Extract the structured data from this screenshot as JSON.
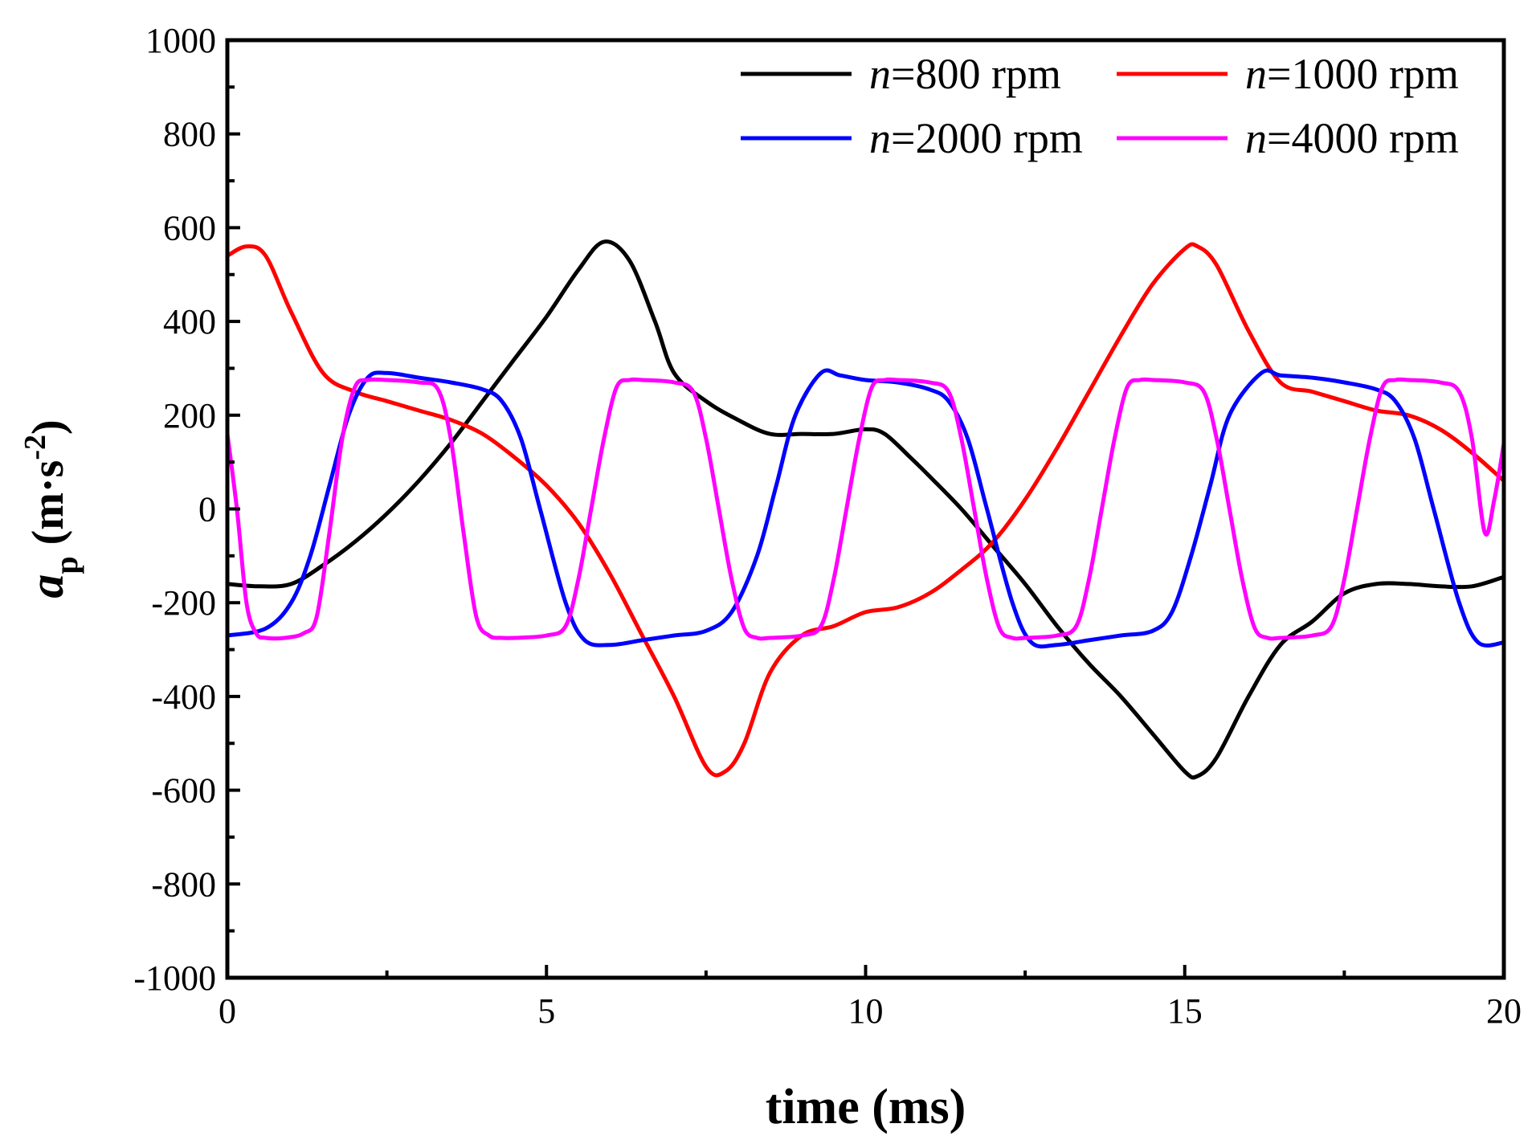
{
  "chart_data": {
    "type": "line",
    "title": "",
    "xlabel": "time (ms)",
    "ylabel": {
      "symbol": "a",
      "subscript": "p",
      "units_prefix": " (m·s",
      "units_exp": "-2",
      "units_suffix": ")"
    },
    "xlim": [
      0,
      20
    ],
    "ylim": [
      -1000,
      1000
    ],
    "x_ticks": [
      0,
      5,
      10,
      15,
      20
    ],
    "y_ticks": [
      -1000,
      -800,
      -600,
      -400,
      -200,
      0,
      200,
      400,
      600,
      800,
      1000
    ],
    "x_minor_step": 2.5,
    "y_minor_step": 100,
    "grid": false,
    "legend_position": "top-right",
    "series": [
      {
        "name": "n=800 rpm",
        "label_var": "n",
        "label_rest": "=800 rpm",
        "color": "#000000",
        "x": [
          0,
          0.5,
          1,
          1.5,
          2,
          2.5,
          3,
          3.5,
          4,
          4.5,
          5,
          5.5,
          5.9,
          6.3,
          6.7,
          7,
          7.5,
          8,
          8.5,
          9,
          9.5,
          10,
          10.3,
          10.7,
          11,
          11.5,
          12,
          12.5,
          13,
          13.5,
          14,
          14.5,
          15,
          15.2,
          15.5,
          16,
          16.5,
          17,
          17.5,
          18,
          18.5,
          19,
          19.5,
          20
        ],
        "y": [
          -160,
          -165,
          -160,
          -120,
          -70,
          -10,
          60,
          140,
          230,
          320,
          410,
          510,
          570,
          530,
          400,
          290,
          230,
          190,
          160,
          160,
          160,
          170,
          160,
          110,
          70,
          0,
          -80,
          -160,
          -250,
          -330,
          -400,
          -480,
          -560,
          -570,
          -530,
          -400,
          -290,
          -240,
          -180,
          -160,
          -160,
          -165,
          -165,
          -145
        ]
      },
      {
        "name": "n=1000 rpm",
        "label_var": "n",
        "label_rest": "=1000 rpm",
        "color": "#ff0000",
        "x": [
          0,
          0.3,
          0.6,
          1,
          1.5,
          2,
          2.5,
          3,
          3.5,
          4,
          4.5,
          5,
          5.5,
          6,
          6.5,
          7,
          7.5,
          7.8,
          8.1,
          8.5,
          9,
          9.5,
          10,
          10.5,
          11,
          11.5,
          12,
          12.5,
          13,
          13.5,
          14,
          14.5,
          15,
          15.2,
          15.5,
          16,
          16.5,
          17,
          17.5,
          18,
          18.5,
          19,
          19.5,
          20
        ],
        "y": [
          540,
          560,
          540,
          420,
          290,
          250,
          230,
          210,
          190,
          160,
          110,
          50,
          -30,
          -140,
          -270,
          -400,
          -550,
          -560,
          -500,
          -350,
          -270,
          -250,
          -220,
          -210,
          -180,
          -130,
          -70,
          20,
          130,
          250,
          370,
          480,
          555,
          560,
          520,
          380,
          270,
          250,
          230,
          210,
          200,
          170,
          120,
          60
        ]
      },
      {
        "name": "n=2000 rpm",
        "label_var": "n",
        "label_rest": "=2000 rpm",
        "color": "#0000ff",
        "x": [
          0,
          0.6,
          1,
          1.3,
          1.6,
          1.9,
          2.2,
          2.5,
          3,
          3.5,
          4,
          4.3,
          4.6,
          4.9,
          5.3,
          5.6,
          6,
          6.5,
          7,
          7.5,
          7.9,
          8.3,
          8.6,
          8.9,
          9.3,
          9.6,
          10,
          10.5,
          11,
          11.3,
          11.6,
          11.9,
          12.3,
          12.6,
          13,
          13.5,
          14,
          14.5,
          14.8,
          15.1,
          15.4,
          15.7,
          16.2,
          16.5,
          17,
          17.5,
          18,
          18.3,
          18.6,
          18.9,
          19.3,
          19.6,
          20
        ],
        "y": [
          -270,
          -255,
          -200,
          -100,
          50,
          200,
          280,
          290,
          280,
          270,
          255,
          230,
          150,
          0,
          -200,
          -280,
          -290,
          -280,
          -270,
          -260,
          -220,
          -100,
          50,
          200,
          290,
          285,
          275,
          270,
          255,
          230,
          150,
          0,
          -200,
          -285,
          -290,
          -280,
          -270,
          -260,
          -220,
          -100,
          50,
          200,
          290,
          285,
          280,
          270,
          255,
          230,
          150,
          0,
          -200,
          -285,
          -285
        ]
      },
      {
        "name": "n=4000 rpm",
        "label_var": "n",
        "label_rest": "=4000 rpm",
        "color": "#ff00ff",
        "x": [
          0,
          0.15,
          0.3,
          0.45,
          0.6,
          0.9,
          1.2,
          1.4,
          1.6,
          1.8,
          2,
          2.2,
          2.5,
          3,
          3.3,
          3.5,
          3.7,
          3.9,
          4.1,
          4.3,
          4.5,
          5,
          5.3,
          5.5,
          5.7,
          5.9,
          6.1,
          6.3,
          6.5,
          7,
          7.3,
          7.5,
          7.7,
          7.9,
          8.1,
          8.3,
          8.5,
          9,
          9.3,
          9.5,
          9.7,
          9.9,
          10.1,
          10.3,
          10.5,
          11,
          11.3,
          11.5,
          11.7,
          11.9,
          12.1,
          12.3,
          12.5,
          13,
          13.3,
          13.5,
          13.7,
          13.9,
          14.1,
          14.3,
          14.5,
          15,
          15.3,
          15.5,
          15.7,
          15.9,
          16.1,
          16.3,
          16.5,
          17,
          17.3,
          17.5,
          17.7,
          17.9,
          18.1,
          18.3,
          18.5,
          19,
          19.3,
          19.5,
          19.7,
          19.85,
          20
        ],
        "y": [
          160,
          0,
          -200,
          -265,
          -275,
          -275,
          -265,
          -230,
          -50,
          150,
          260,
          275,
          275,
          270,
          255,
          150,
          -50,
          -230,
          -270,
          -275,
          -275,
          -270,
          -250,
          -150,
          0,
          150,
          260,
          275,
          275,
          270,
          250,
          150,
          0,
          -150,
          -255,
          -275,
          -275,
          -270,
          -250,
          -150,
          0,
          150,
          260,
          275,
          275,
          270,
          250,
          150,
          0,
          -150,
          -255,
          -275,
          -275,
          -270,
          -250,
          -150,
          0,
          150,
          260,
          275,
          275,
          270,
          250,
          150,
          0,
          -150,
          -255,
          -275,
          -275,
          -270,
          -250,
          -150,
          0,
          150,
          260,
          275,
          275,
          270,
          250,
          150,
          -50,
          20,
          140
        ]
      }
    ]
  }
}
